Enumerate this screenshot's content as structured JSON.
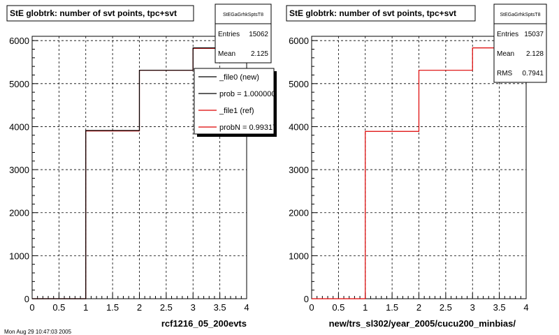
{
  "chart_data": [
    {
      "type": "line",
      "title": "StE globtrk: number of svt points, tpc+svt",
      "xlabel": "rcf1216_05_200evts",
      "ylabel": "",
      "xlim": [
        0,
        4
      ],
      "ylim": [
        0,
        6100
      ],
      "x_ticks": [
        "0",
        "0.5",
        "1",
        "1.5",
        "2",
        "2.5",
        "3",
        "3.5",
        "4"
      ],
      "y_ticks": [
        "0",
        "1000",
        "2000",
        "3000",
        "4000",
        "5000",
        "6000"
      ],
      "grid": true,
      "bin_edges": [
        0,
        1,
        2,
        3,
        4
      ],
      "series": [
        {
          "name": "_file0 (new)",
          "color": "#000000",
          "values": [
            0,
            3910,
            5310,
            5830
          ]
        },
        {
          "name": "_file1 (ref)",
          "color": "#dd0000",
          "values": [
            0,
            3900,
            5310,
            5820
          ]
        }
      ],
      "stats": {
        "name": "StEGaGrhkSptsT8",
        "rows": [
          {
            "label": "Entries",
            "value": "15062"
          },
          {
            "label": "Mean",
            "value": "2.125"
          }
        ]
      },
      "legend": {
        "placement": "top-right",
        "entries": [
          {
            "label": "_file0 (new)",
            "color": "#000000"
          },
          {
            "label": "prob = 1.000000",
            "color": "#000000"
          },
          {
            "label": "_file1 (ref)",
            "color": "#dd0000"
          },
          {
            "label": "probN = 0.99317",
            "color": "#dd0000"
          }
        ]
      }
    },
    {
      "type": "line",
      "title": "StE globtrk: number of svt points, tpc+svt",
      "xlabel": "new/trs_sl302/year_2005/cucu200_minbias/",
      "ylabel": "",
      "xlim": [
        0,
        4
      ],
      "ylim": [
        0,
        6100
      ],
      "x_ticks": [
        "0",
        "0.5",
        "1",
        "1.5",
        "2",
        "2.5",
        "3",
        "3.5",
        "4"
      ],
      "y_ticks": [
        "0",
        "1000",
        "2000",
        "3000",
        "4000",
        "5000",
        "6000"
      ],
      "grid": true,
      "bin_edges": [
        0,
        1,
        2,
        3,
        4
      ],
      "series": [
        {
          "name": "",
          "color": "#dd0000",
          "values": [
            0,
            3890,
            5310,
            5830
          ]
        }
      ],
      "stats": {
        "name": "StEGaGrhkSptsT8",
        "rows": [
          {
            "label": "Entries",
            "value": "15037"
          },
          {
            "label": "Mean",
            "value": "2.128"
          },
          {
            "label": "RMS",
            "value": "0.7941"
          }
        ]
      }
    }
  ],
  "footer": {
    "timestamp": "Mon Aug 29 10:47:03 2005"
  }
}
